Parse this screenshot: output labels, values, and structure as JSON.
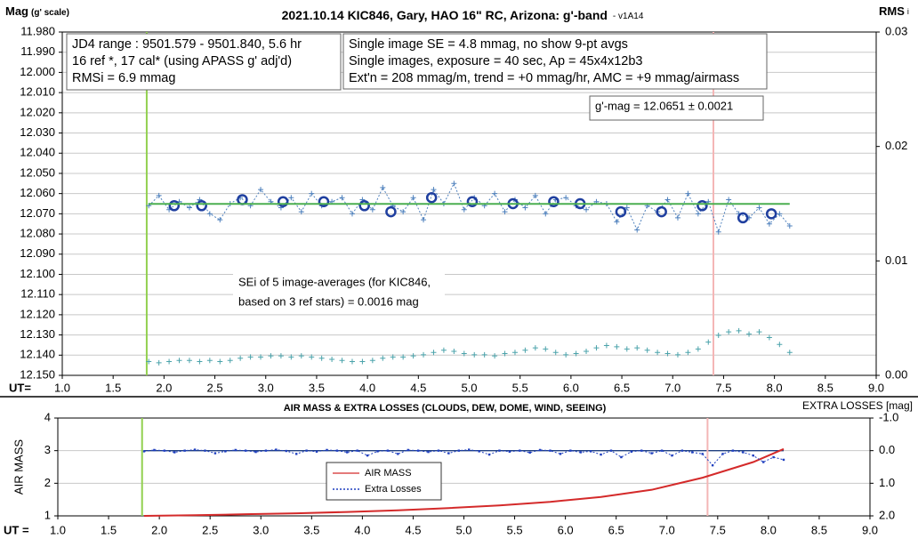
{
  "chart_data": [
    {
      "type": "scatter",
      "title": "2021.10.14 KIC846, Gary, HAO 16\" RC, Arizona: g'-band",
      "subtitle": "- v1A14",
      "ylabel": "Mag",
      "ylabel_sub": "(g' scale)",
      "y2label": "RMS",
      "y2label_sub": "i",
      "xlabel": "UT=",
      "xlim": [
        1,
        9
      ],
      "xticks": [
        {
          "value": 1,
          "label": "1.0"
        },
        {
          "value": 1.5,
          "label": "1.5"
        },
        {
          "value": 2,
          "label": "2.0"
        },
        {
          "value": 2.5,
          "label": "2.5"
        },
        {
          "value": 3,
          "label": "3.0"
        },
        {
          "value": 3.5,
          "label": "3.5"
        },
        {
          "value": 4,
          "label": "4.0"
        },
        {
          "value": 4.5,
          "label": "4.5"
        },
        {
          "value": 5,
          "label": "5.0"
        },
        {
          "value": 5.5,
          "label": "5.5"
        },
        {
          "value": 6,
          "label": "6.0"
        },
        {
          "value": 6.5,
          "label": "6.5"
        },
        {
          "value": 7,
          "label": "7.0"
        },
        {
          "value": 7.5,
          "label": "7.5"
        },
        {
          "value": 8,
          "label": "8.0"
        },
        {
          "value": 8.5,
          "label": "8.5"
        },
        {
          "value": 9,
          "label": "9.0"
        }
      ],
      "ylim": [
        12.15,
        11.98
      ],
      "yticks": [
        {
          "value": 11.98,
          "label": "11.980"
        },
        {
          "value": 11.99,
          "label": "11.990"
        },
        {
          "value": 12.0,
          "label": "12.000"
        },
        {
          "value": 12.01,
          "label": "12.010"
        },
        {
          "value": 12.02,
          "label": "12.020"
        },
        {
          "value": 12.03,
          "label": "12.030"
        },
        {
          "value": 12.04,
          "label": "12.040"
        },
        {
          "value": 12.05,
          "label": "12.050"
        },
        {
          "value": 12.06,
          "label": "12.060"
        },
        {
          "value": 12.07,
          "label": "12.070"
        },
        {
          "value": 12.08,
          "label": "12.080"
        },
        {
          "value": 12.09,
          "label": "12.090"
        },
        {
          "value": 12.1,
          "label": "12.100"
        },
        {
          "value": 12.11,
          "label": "12.110"
        },
        {
          "value": 12.12,
          "label": "12.120"
        },
        {
          "value": 12.13,
          "label": "12.130"
        },
        {
          "value": 12.14,
          "label": "12.140"
        },
        {
          "value": 12.15,
          "label": "12.150"
        }
      ],
      "y2lim": [
        0,
        0.03
      ],
      "y2ticks": [
        {
          "value": 0,
          "label": "0.00"
        },
        {
          "value": 0.01,
          "label": "0.01"
        },
        {
          "value": 0.02,
          "label": "0.02"
        },
        {
          "value": 0.03,
          "label": "0.03"
        }
      ],
      "grid": true,
      "vlines": [
        {
          "x": 1.83,
          "color": "#92d050"
        },
        {
          "x": 7.4,
          "color": "#f4b6b6"
        }
      ],
      "series": [
        {
          "color": "#4f81bd",
          "marker": "plus",
          "line": "dotted",
          "x": [
            1.85,
            1.95,
            2.05,
            2.15,
            2.25,
            2.35,
            2.45,
            2.55,
            2.65,
            2.75,
            2.85,
            2.95,
            3.05,
            3.15,
            3.25,
            3.35,
            3.45,
            3.55,
            3.65,
            3.75,
            3.85,
            3.95,
            4.05,
            4.15,
            4.25,
            4.35,
            4.45,
            4.55,
            4.65,
            4.75,
            4.85,
            4.95,
            5.05,
            5.15,
            5.25,
            5.35,
            5.45,
            5.55,
            5.65,
            5.75,
            5.85,
            5.95,
            6.05,
            6.15,
            6.25,
            6.35,
            6.45,
            6.55,
            6.65,
            6.75,
            6.85,
            6.95,
            7.05,
            7.15,
            7.25,
            7.35,
            7.45,
            7.55,
            7.65,
            7.75,
            7.85,
            7.95,
            8.05,
            8.15
          ],
          "values": [
            12.066,
            12.061,
            12.068,
            12.064,
            12.067,
            12.063,
            12.07,
            12.073,
            12.065,
            12.062,
            12.066,
            12.058,
            12.064,
            12.067,
            12.062,
            12.069,
            12.06,
            12.066,
            12.064,
            12.062,
            12.07,
            12.063,
            12.068,
            12.057,
            12.066,
            12.069,
            12.062,
            12.073,
            12.058,
            12.065,
            12.055,
            12.068,
            12.062,
            12.066,
            12.06,
            12.069,
            12.063,
            12.067,
            12.061,
            12.07,
            12.063,
            12.062,
            12.066,
            12.068,
            12.064,
            12.065,
            12.074,
            12.067,
            12.078,
            12.066,
            12.069,
            12.063,
            12.072,
            12.06,
            12.07,
            12.064,
            12.079,
            12.063,
            12.07,
            12.072,
            12.067,
            12.075,
            12.07,
            12.076
          ]
        },
        {
          "color": "#1f3f9f",
          "marker": "circle",
          "line": "none",
          "x": [
            2.1,
            2.37,
            2.77,
            3.17,
            3.57,
            3.97,
            4.23,
            4.63,
            5.03,
            5.43,
            5.83,
            6.09,
            6.49,
            6.89,
            7.29,
            7.69,
            7.97
          ],
          "values": [
            12.066,
            12.066,
            12.063,
            12.064,
            12.064,
            12.066,
            12.069,
            12.062,
            12.064,
            12.065,
            12.064,
            12.065,
            12.069,
            12.069,
            12.066,
            12.072,
            12.07
          ]
        },
        {
          "color": "#4caf50",
          "marker": "none",
          "line": "solid",
          "x": [
            1.85,
            8.15
          ],
          "values": [
            12.0651,
            12.0651
          ]
        },
        {
          "color": "#4ba3ab",
          "marker": "plus",
          "line": "none",
          "axis": "y2",
          "x": [
            1.85,
            1.95,
            2.05,
            2.15,
            2.25,
            2.35,
            2.45,
            2.55,
            2.65,
            2.75,
            2.85,
            2.95,
            3.05,
            3.15,
            3.25,
            3.35,
            3.45,
            3.55,
            3.65,
            3.75,
            3.85,
            3.95,
            4.05,
            4.15,
            4.25,
            4.35,
            4.45,
            4.55,
            4.65,
            4.75,
            4.85,
            4.95,
            5.05,
            5.15,
            5.25,
            5.35,
            5.45,
            5.55,
            5.65,
            5.75,
            5.85,
            5.95,
            6.05,
            6.15,
            6.25,
            6.35,
            6.45,
            6.55,
            6.65,
            6.75,
            6.85,
            6.95,
            7.05,
            7.15,
            7.25,
            7.35,
            7.45,
            7.55,
            7.65,
            7.75,
            7.85,
            7.95,
            8.05,
            8.15
          ],
          "values": [
            0.0012,
            0.0011,
            0.0012,
            0.0013,
            0.0013,
            0.0012,
            0.0013,
            0.0012,
            0.0013,
            0.0015,
            0.0016,
            0.0016,
            0.0017,
            0.0017,
            0.0016,
            0.0017,
            0.0016,
            0.0015,
            0.0014,
            0.0013,
            0.0012,
            0.0012,
            0.0013,
            0.0015,
            0.0016,
            0.0016,
            0.0017,
            0.0018,
            0.002,
            0.0022,
            0.0021,
            0.0019,
            0.0018,
            0.0018,
            0.0017,
            0.0019,
            0.002,
            0.0022,
            0.0024,
            0.0023,
            0.002,
            0.0018,
            0.0019,
            0.0021,
            0.0024,
            0.0026,
            0.0025,
            0.0023,
            0.0024,
            0.0022,
            0.002,
            0.0019,
            0.0018,
            0.002,
            0.0023,
            0.0029,
            0.0035,
            0.0038,
            0.0039,
            0.0036,
            0.0038,
            0.0033,
            0.0027,
            0.002
          ]
        }
      ],
      "annotations": [
        {
          "lines": [
            "JD4 range : 9501.579 - 9501.840,  5.6  hr",
            "16 ref *, 17 cal* (using APASS g' adj'd)",
            "RMSi = 6.9 mmag"
          ]
        },
        {
          "lines": [
            "Single image SE = 4.8 mmag, no show  9-pt avgs",
            "Single images, exposure = 40 sec, Ap = 45x4x12b3",
            "Ext'n = 208 mmag/m, trend = +0 mmag/hr, AMC = +9 mmag/airmass"
          ]
        },
        {
          "lines": [
            "g'-mag = 12.0651 ± 0.0021"
          ]
        },
        {
          "lines": [
            "SEi of 5 image-averages (for KIC846,",
            "based on 3 ref stars) = 0.0016 mag"
          ]
        }
      ]
    },
    {
      "type": "line",
      "title": "AIR MASS & EXTRA LOSSES (CLOUDS, DEW, DOME, WIND, SEEING)",
      "ylabel": "AIR MASS",
      "y2label": "EXTRA LOSSES [mag]",
      "xlabel": "UT =",
      "xlim": [
        1,
        9
      ],
      "xticks": [
        {
          "value": 1,
          "label": "1.0"
        },
        {
          "value": 1.5,
          "label": "1.5"
        },
        {
          "value": 2,
          "label": "2.0"
        },
        {
          "value": 2.5,
          "label": "2.5"
        },
        {
          "value": 3,
          "label": "3.0"
        },
        {
          "value": 3.5,
          "label": "3.5"
        },
        {
          "value": 4,
          "label": "4.0"
        },
        {
          "value": 4.5,
          "label": "4.5"
        },
        {
          "value": 5,
          "label": "5.0"
        },
        {
          "value": 5.5,
          "label": "5.5"
        },
        {
          "value": 6,
          "label": "6.0"
        },
        {
          "value": 6.5,
          "label": "6.5"
        },
        {
          "value": 7,
          "label": "7.0"
        },
        {
          "value": 7.5,
          "label": "7.5"
        },
        {
          "value": 8,
          "label": "8.0"
        },
        {
          "value": 8.5,
          "label": "8.5"
        },
        {
          "value": 9,
          "label": "9.0"
        }
      ],
      "ylim": [
        1,
        4
      ],
      "yticks": [
        1,
        2,
        3,
        4
      ],
      "y2lim": [
        2,
        -1
      ],
      "y2ticks": [
        {
          "value": -1,
          "label": "-1.0"
        },
        {
          "value": 0,
          "label": "0.0"
        },
        {
          "value": 1,
          "label": "1.0"
        },
        {
          "value": 2,
          "label": "2.0"
        }
      ],
      "grid": true,
      "vlines": [
        {
          "x": 1.83,
          "color": "#92d050"
        },
        {
          "x": 7.4,
          "color": "#f4b6b6"
        }
      ],
      "series": [
        {
          "name": "AIR MASS",
          "color": "#d42a2a",
          "marker": "none",
          "line": "solid",
          "x": [
            1.85,
            2.35,
            2.85,
            3.35,
            3.85,
            4.35,
            4.85,
            5.35,
            5.85,
            6.35,
            6.85,
            7.35,
            7.85,
            8.15
          ],
          "values": [
            1.0,
            1.02,
            1.05,
            1.08,
            1.12,
            1.17,
            1.24,
            1.32,
            1.43,
            1.58,
            1.8,
            2.17,
            2.65,
            3.05
          ]
        },
        {
          "name": "Extra Losses",
          "color": "#1f3fbf",
          "marker": "dot",
          "line": "dotted",
          "axis": "y2",
          "x": [
            1.85,
            1.95,
            2.05,
            2.15,
            2.25,
            2.35,
            2.45,
            2.55,
            2.65,
            2.75,
            2.85,
            2.95,
            3.05,
            3.15,
            3.25,
            3.35,
            3.45,
            3.55,
            3.65,
            3.75,
            3.85,
            3.95,
            4.05,
            4.15,
            4.25,
            4.35,
            4.45,
            4.55,
            4.65,
            4.75,
            4.85,
            4.95,
            5.05,
            5.15,
            5.25,
            5.35,
            5.45,
            5.55,
            5.65,
            5.75,
            5.85,
            5.95,
            6.05,
            6.15,
            6.25,
            6.35,
            6.45,
            6.55,
            6.65,
            6.75,
            6.85,
            6.95,
            7.05,
            7.15,
            7.25,
            7.35,
            7.45,
            7.55,
            7.65,
            7.75,
            7.85,
            7.95,
            8.05,
            8.15
          ],
          "values": [
            0.02,
            -0.02,
            0.0,
            0.05,
            0.0,
            -0.03,
            0.0,
            0.08,
            0.02,
            -0.02,
            0.0,
            0.04,
            0.0,
            -0.03,
            0.01,
            0.1,
            0.0,
            0.03,
            -0.02,
            0.0,
            0.05,
            0.0,
            0.15,
            0.02,
            0.0,
            0.1,
            -0.02,
            0.0,
            0.04,
            0.0,
            0.08,
            0.0,
            -0.03,
            0.02,
            0.12,
            0.0,
            0.03,
            0.0,
            0.06,
            -0.02,
            0.0,
            0.1,
            0.0,
            0.05,
            0.02,
            0.12,
            0.0,
            0.2,
            0.03,
            0.0,
            0.08,
            0.0,
            0.15,
            0.0,
            0.05,
            0.1,
            0.45,
            0.1,
            0.0,
            0.05,
            0.15,
            0.35,
            0.2,
            0.28
          ]
        }
      ]
    }
  ]
}
